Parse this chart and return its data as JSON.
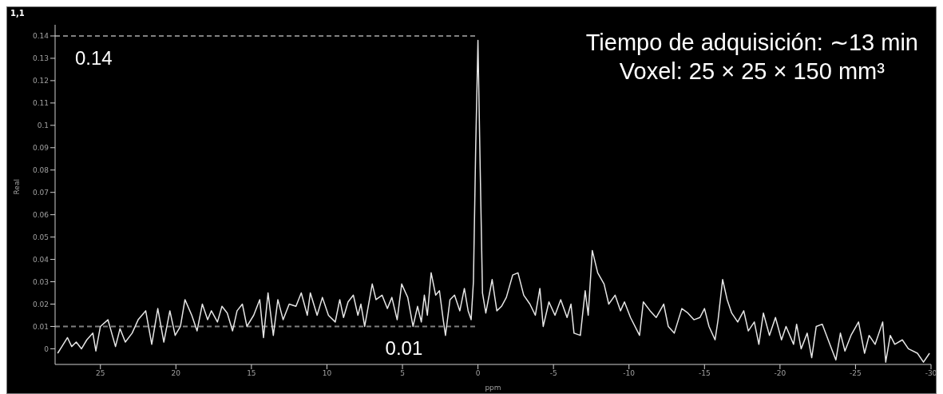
{
  "chart_data": {
    "type": "line",
    "title": "1,1",
    "xlabel": "ppm",
    "ylabel": "Real",
    "annotations": [
      "Tiempo de adquisición: ∼13 min",
      "Voxel: 25 × 25 × 150 mm³"
    ],
    "x": [
      27.83,
      27.55,
      27.18,
      26.9,
      26.6,
      26.25,
      25.9,
      25.5,
      25.3,
      25.0,
      24.5,
      24.0,
      23.7,
      23.35,
      22.9,
      22.5,
      22.0,
      21.6,
      21.2,
      20.8,
      20.4,
      20.05,
      19.7,
      19.4,
      18.95,
      18.6,
      18.25,
      17.9,
      17.65,
      17.25,
      16.95,
      16.6,
      16.25,
      15.95,
      15.6,
      15.3,
      14.85,
      14.45,
      14.2,
      13.9,
      13.55,
      13.25,
      12.9,
      12.5,
      12.05,
      11.7,
      11.3,
      11.1,
      10.65,
      10.3,
      9.9,
      9.45,
      9.15,
      8.9,
      8.6,
      8.25,
      7.95,
      7.75,
      7.5,
      7.0,
      6.75,
      6.35,
      6.0,
      5.7,
      5.35,
      5.05,
      4.65,
      4.3,
      4.0,
      3.75,
      3.55,
      3.35,
      3.1,
      2.8,
      2.55,
      2.3,
      2.15,
      1.85,
      1.55,
      1.2,
      0.9,
      0.65,
      0.45,
      0.3,
      0.15,
      0.0,
      -0.15,
      -0.3,
      -0.52,
      -0.94,
      -1.25,
      -1.56,
      -1.88,
      -2.3,
      -2.65,
      -3.03,
      -3.44,
      -3.8,
      -4.1,
      -4.32,
      -4.7,
      -5.1,
      -5.48,
      -5.9,
      -6.16,
      -6.36,
      -6.78,
      -7.1,
      -7.3,
      -7.57,
      -7.93,
      -8.35,
      -8.66,
      -9.08,
      -9.44,
      -9.7,
      -10.1,
      -10.7,
      -10.95,
      -11.4,
      -11.8,
      -12.3,
      -12.6,
      -13.0,
      -13.5,
      -13.9,
      -14.3,
      -14.7,
      -15.0,
      -15.3,
      -15.7,
      -15.9,
      -16.2,
      -16.5,
      -16.8,
      -17.2,
      -17.6,
      -17.9,
      -18.3,
      -18.6,
      -18.9,
      -19.3,
      -19.7,
      -20.1,
      -20.4,
      -20.9,
      -21.1,
      -21.4,
      -21.8,
      -22.1,
      -22.4,
      -22.8,
      -23.3,
      -23.7,
      -24.0,
      -24.3,
      -24.7,
      -25.2,
      -25.6,
      -25.9,
      -26.3,
      -26.8,
      -27.0,
      -27.3,
      -27.6,
      -28.1,
      -28.5,
      -29.1,
      -29.5,
      -29.9
    ],
    "series": [
      {
        "color": "#e6e6e6",
        "values": [
          -0.002,
          0.001,
          0.005,
          0.001,
          0.003,
          0.0,
          0.004,
          0.007,
          -0.001,
          0.01,
          0.013,
          0.001,
          0.009,
          0.003,
          0.007,
          0.013,
          0.017,
          0.002,
          0.018,
          0.003,
          0.017,
          0.006,
          0.01,
          0.022,
          0.015,
          0.008,
          0.02,
          0.013,
          0.017,
          0.012,
          0.019,
          0.016,
          0.008,
          0.017,
          0.02,
          0.01,
          0.015,
          0.022,
          0.005,
          0.025,
          0.006,
          0.022,
          0.013,
          0.02,
          0.019,
          0.025,
          0.015,
          0.025,
          0.015,
          0.023,
          0.015,
          0.012,
          0.022,
          0.014,
          0.021,
          0.024,
          0.015,
          0.02,
          0.01,
          0.029,
          0.022,
          0.024,
          0.018,
          0.023,
          0.013,
          0.029,
          0.023,
          0.01,
          0.019,
          0.012,
          0.024,
          0.015,
          0.034,
          0.024,
          0.026,
          0.013,
          0.006,
          0.022,
          0.024,
          0.017,
          0.027,
          0.017,
          0.013,
          0.03,
          0.09,
          0.138,
          0.08,
          0.025,
          0.016,
          0.031,
          0.017,
          0.019,
          0.023,
          0.033,
          0.034,
          0.024,
          0.02,
          0.015,
          0.027,
          0.01,
          0.021,
          0.015,
          0.022,
          0.014,
          0.02,
          0.007,
          0.006,
          0.026,
          0.015,
          0.044,
          0.034,
          0.029,
          0.02,
          0.024,
          0.017,
          0.021,
          0.014,
          0.006,
          0.021,
          0.017,
          0.014,
          0.02,
          0.01,
          0.007,
          0.018,
          0.016,
          0.013,
          0.014,
          0.018,
          0.01,
          0.004,
          0.013,
          0.031,
          0.022,
          0.016,
          0.012,
          0.017,
          0.008,
          0.012,
          0.002,
          0.016,
          0.006,
          0.014,
          0.004,
          0.01,
          0.002,
          0.011,
          0.0,
          0.007,
          -0.004,
          0.01,
          0.011,
          0.002,
          -0.005,
          0.007,
          -0.001,
          0.006,
          0.012,
          -0.002,
          0.006,
          0.002,
          0.012,
          -0.006,
          0.006,
          0.002,
          0.004,
          0.0,
          -0.002,
          -0.006,
          -0.002
        ]
      }
    ],
    "xlim": [
      28,
      -30
    ],
    "xticks": [
      25,
      20,
      15,
      10,
      5,
      0,
      -5,
      -10,
      -15,
      -20,
      -25,
      -30
    ],
    "ylim": [
      -0.007,
      0.145
    ],
    "yticks": [
      0,
      0.01,
      0.02,
      0.03,
      0.04,
      0.05,
      0.06,
      0.07,
      0.08,
      0.09,
      0.1,
      0.11,
      0.12,
      0.13,
      0.14
    ],
    "ref_lines": [
      {
        "axis": "y",
        "value": 0.14,
        "label": "0.14",
        "color": "#808080",
        "line_style": "dashed"
      },
      {
        "axis": "y",
        "value": 0.01,
        "label": "0.01",
        "color": "#808080",
        "line_style": "dashed"
      }
    ]
  }
}
